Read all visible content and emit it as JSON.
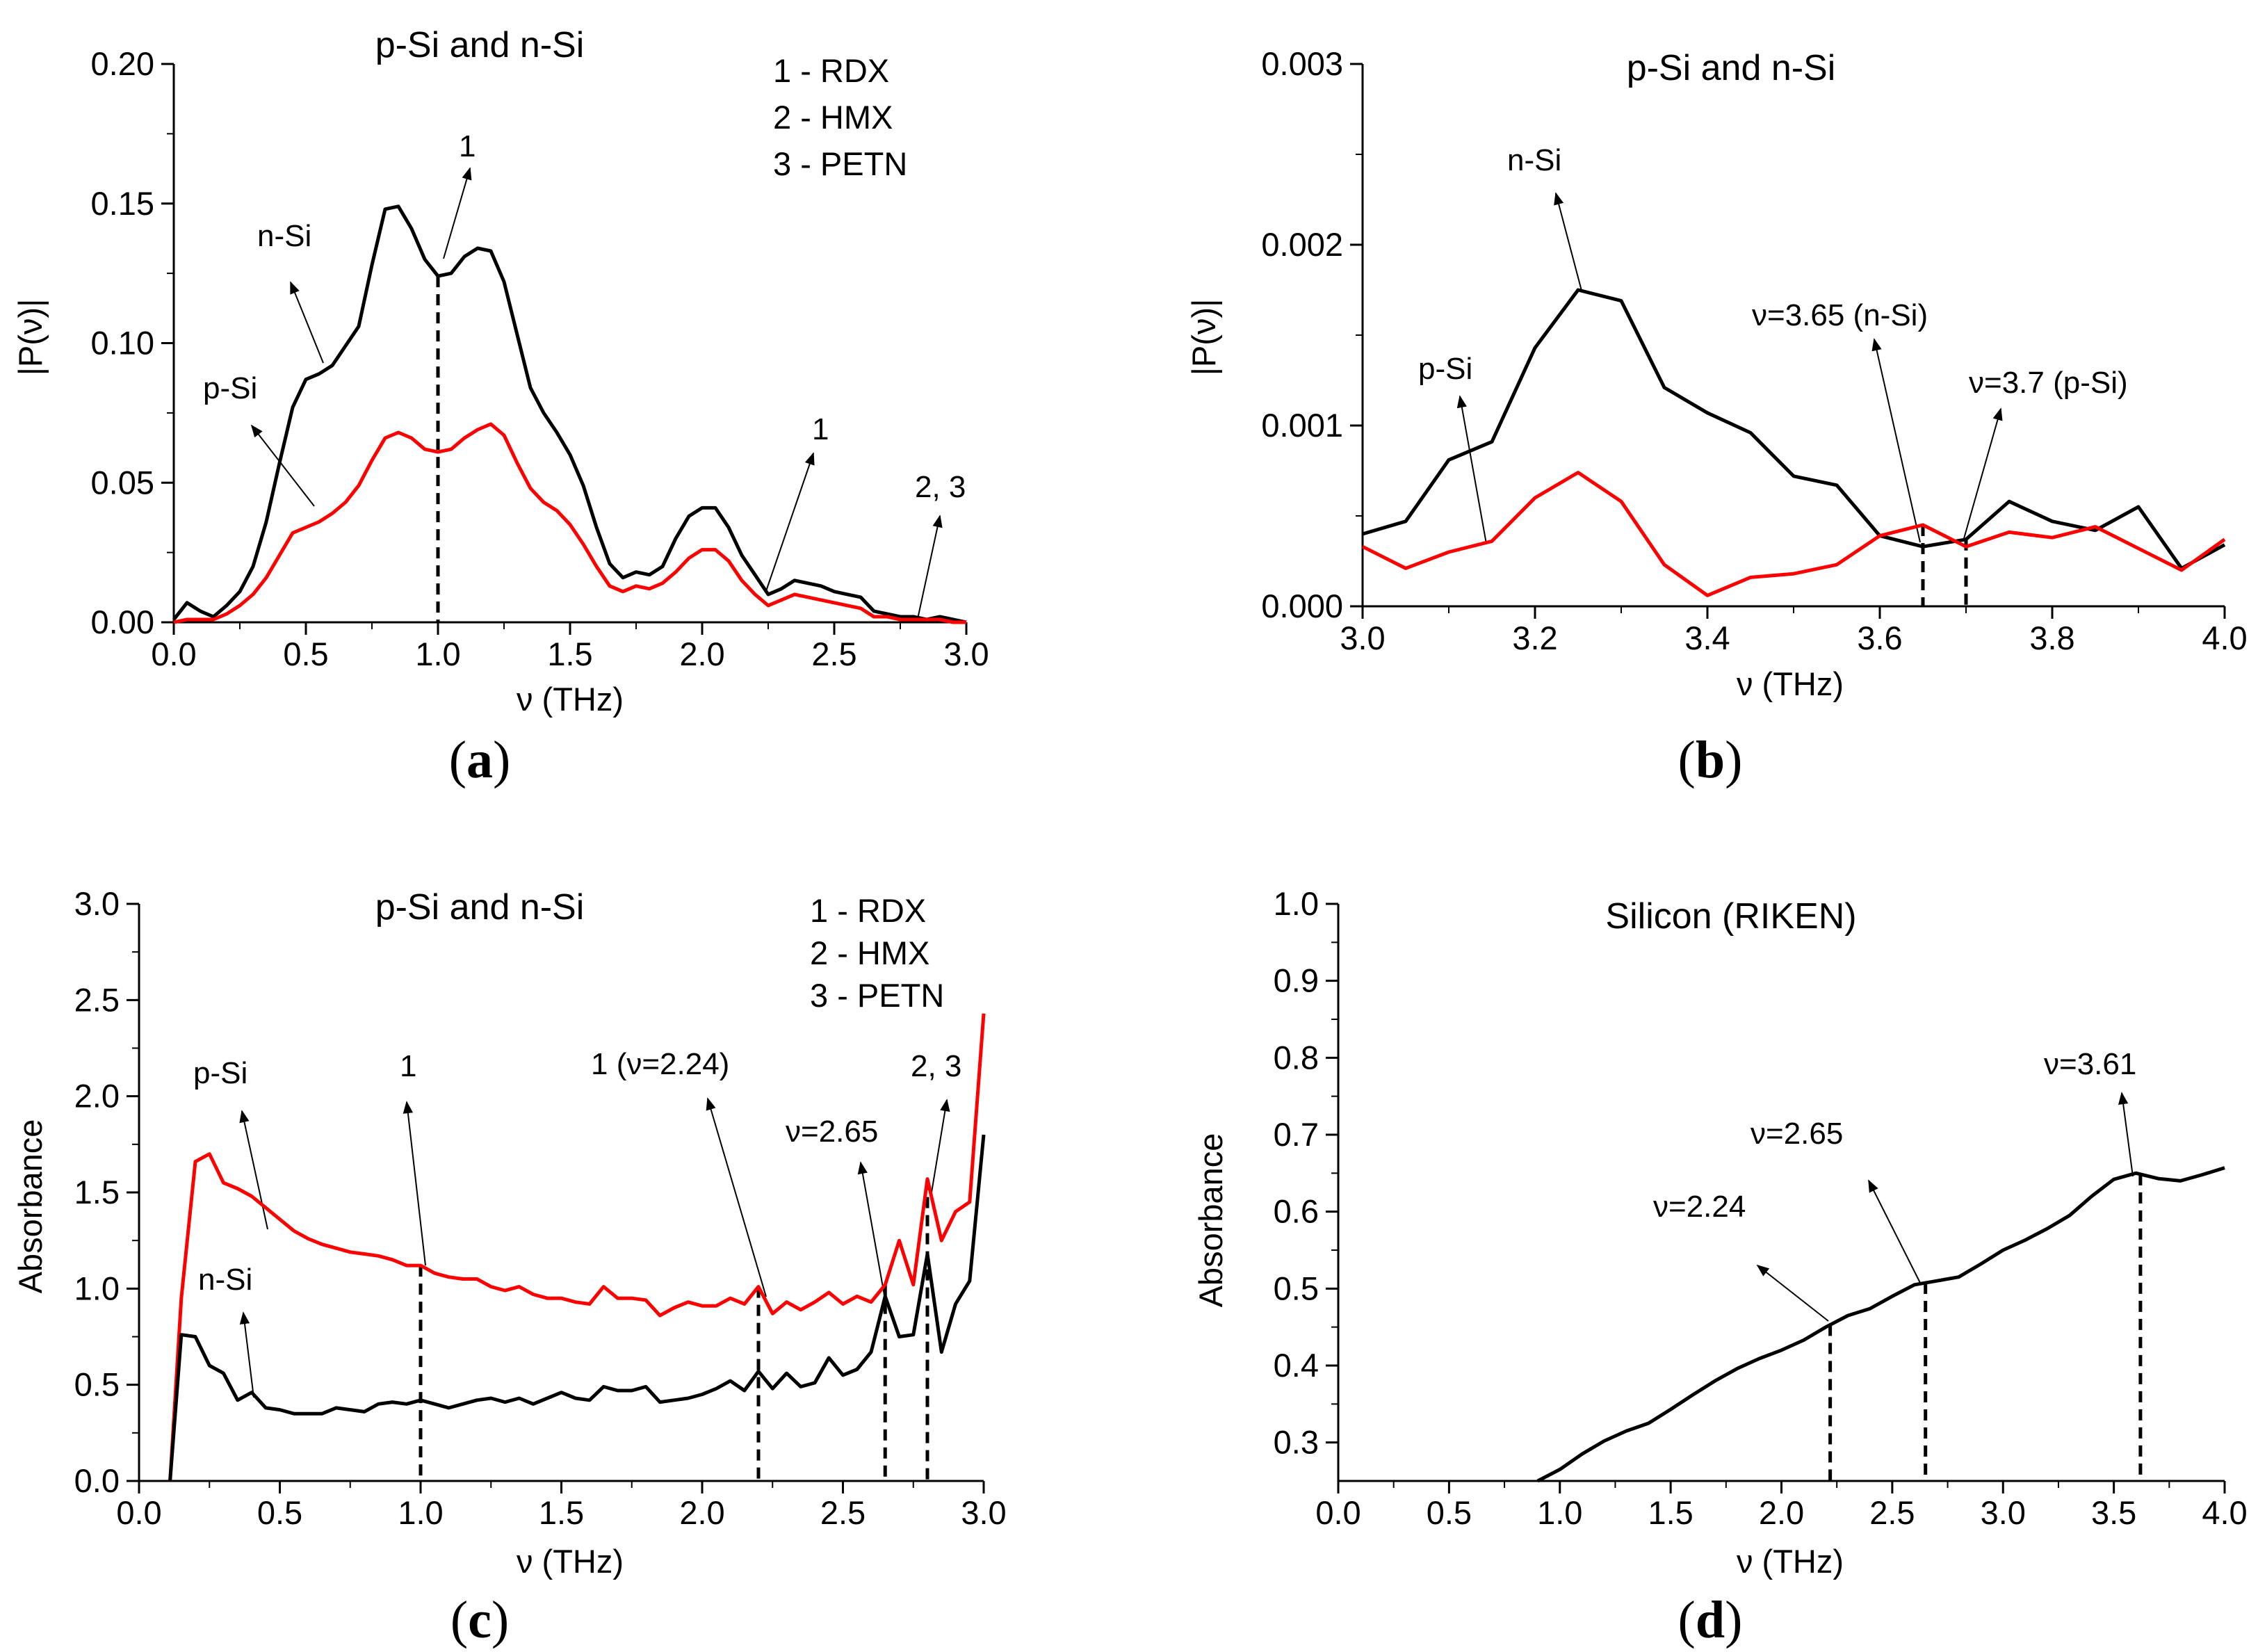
{
  "chart_data": [
    {
      "id": "a",
      "type": "line",
      "caption": "a",
      "title": "p-Si and n-Si",
      "xlabel": "ν (THz)",
      "ylabel": "|P(ν)|",
      "xlim": [
        0,
        3
      ],
      "ylim": [
        0,
        0.2
      ],
      "xticks": [
        "0.0",
        "0.5",
        "1.0",
        "1.5",
        "2.0",
        "2.5",
        "3.0"
      ],
      "yticks": [
        "0.00",
        "0.05",
        "0.10",
        "0.15",
        "0.20"
      ],
      "legend_text": [
        "1 - RDX",
        "2 - HMX",
        "3 - PETN"
      ],
      "series": [
        {
          "name": "n-Si",
          "color": "#000000",
          "x": [
            0,
            0.05,
            0.1,
            0.15,
            0.2,
            0.25,
            0.3,
            0.35,
            0.4,
            0.45,
            0.5,
            0.55,
            0.6,
            0.65,
            0.7,
            0.75,
            0.8,
            0.85,
            0.9,
            0.95,
            1.0,
            1.05,
            1.1,
            1.15,
            1.2,
            1.25,
            1.3,
            1.35,
            1.4,
            1.45,
            1.5,
            1.55,
            1.6,
            1.65,
            1.7,
            1.75,
            1.8,
            1.85,
            1.9,
            1.95,
            2.0,
            2.05,
            2.1,
            2.15,
            2.2,
            2.25,
            2.3,
            2.35,
            2.4,
            2.45,
            2.5,
            2.55,
            2.6,
            2.65,
            2.7,
            2.75,
            2.8,
            2.85,
            2.9,
            2.95,
            3.0
          ],
          "y": [
            0.001,
            0.007,
            0.004,
            0.002,
            0.006,
            0.011,
            0.02,
            0.036,
            0.057,
            0.077,
            0.087,
            0.089,
            0.092,
            0.099,
            0.106,
            0.128,
            0.148,
            0.149,
            0.141,
            0.13,
            0.124,
            0.125,
            0.131,
            0.134,
            0.133,
            0.122,
            0.103,
            0.084,
            0.075,
            0.068,
            0.06,
            0.049,
            0.034,
            0.021,
            0.016,
            0.018,
            0.017,
            0.02,
            0.03,
            0.038,
            0.041,
            0.041,
            0.034,
            0.024,
            0.017,
            0.01,
            0.012,
            0.015,
            0.014,
            0.013,
            0.011,
            0.01,
            0.009,
            0.004,
            0.003,
            0.002,
            0.002,
            0.001,
            0.002,
            0.001,
            0.0
          ]
        },
        {
          "name": "p-Si",
          "color": "#ff0000",
          "x": [
            0,
            0.05,
            0.1,
            0.15,
            0.2,
            0.25,
            0.3,
            0.35,
            0.4,
            0.45,
            0.5,
            0.55,
            0.6,
            0.65,
            0.7,
            0.75,
            0.8,
            0.85,
            0.9,
            0.95,
            1.0,
            1.05,
            1.1,
            1.15,
            1.2,
            1.25,
            1.3,
            1.35,
            1.4,
            1.45,
            1.5,
            1.55,
            1.6,
            1.65,
            1.7,
            1.75,
            1.8,
            1.85,
            1.9,
            1.95,
            2.0,
            2.05,
            2.1,
            2.15,
            2.2,
            2.25,
            2.3,
            2.35,
            2.4,
            2.45,
            2.5,
            2.55,
            2.6,
            2.65,
            2.7,
            2.75,
            2.8,
            2.85,
            2.9,
            2.95,
            3.0
          ],
          "y": [
            0.0,
            0.001,
            0.001,
            0.001,
            0.003,
            0.006,
            0.01,
            0.016,
            0.024,
            0.032,
            0.034,
            0.036,
            0.039,
            0.043,
            0.049,
            0.058,
            0.066,
            0.068,
            0.066,
            0.062,
            0.061,
            0.062,
            0.066,
            0.069,
            0.071,
            0.067,
            0.057,
            0.048,
            0.043,
            0.04,
            0.035,
            0.028,
            0.02,
            0.013,
            0.011,
            0.013,
            0.012,
            0.014,
            0.018,
            0.023,
            0.026,
            0.026,
            0.022,
            0.015,
            0.01,
            0.006,
            0.008,
            0.01,
            0.009,
            0.008,
            0.007,
            0.006,
            0.005,
            0.002,
            0.002,
            0.001,
            0.001,
            0.001,
            0.001,
            0.0,
            0.0
          ]
        }
      ],
      "annotations": [
        {
          "text": "n-Si"
        },
        {
          "text": "p-Si"
        },
        {
          "text": "1"
        },
        {
          "text": "1"
        },
        {
          "text": "2, 3"
        }
      ],
      "vlines": [
        1.0
      ]
    },
    {
      "id": "b",
      "type": "line",
      "caption": "b",
      "title": "p-Si and n-Si",
      "xlabel": "ν (THz)",
      "ylabel": "|P(ν)|",
      "xlim": [
        3,
        4
      ],
      "ylim": [
        0,
        0.003
      ],
      "xticks": [
        "3.0",
        "3.2",
        "3.4",
        "3.6",
        "3.8",
        "4.0"
      ],
      "yticks": [
        "0.000",
        "0.001",
        "0.002",
        "0.003"
      ],
      "series": [
        {
          "name": "n-Si",
          "color": "#000000",
          "x": [
            3.0,
            3.05,
            3.1,
            3.15,
            3.2,
            3.25,
            3.3,
            3.35,
            3.4,
            3.45,
            3.5,
            3.55,
            3.6,
            3.65,
            3.7,
            3.75,
            3.8,
            3.85,
            3.9,
            3.95,
            4.0
          ],
          "y": [
            0.0004,
            0.00047,
            0.00081,
            0.00091,
            0.00143,
            0.00175,
            0.00169,
            0.00121,
            0.00107,
            0.00096,
            0.00072,
            0.00067,
            0.00039,
            0.00033,
            0.00037,
            0.00058,
            0.00047,
            0.00042,
            0.00055,
            0.00021,
            0.00034
          ]
        },
        {
          "name": "p-Si",
          "color": "#ff0000",
          "x": [
            3.0,
            3.05,
            3.1,
            3.15,
            3.2,
            3.25,
            3.3,
            3.35,
            3.4,
            3.45,
            3.5,
            3.55,
            3.6,
            3.65,
            3.7,
            3.75,
            3.8,
            3.85,
            3.9,
            3.95,
            4.0
          ],
          "y": [
            0.00033,
            0.00021,
            0.0003,
            0.00036,
            0.0006,
            0.00074,
            0.00058,
            0.00023,
            6e-05,
            0.00016,
            0.00018,
            0.00023,
            0.00039,
            0.00045,
            0.00033,
            0.00041,
            0.00038,
            0.00044,
            0.00032,
            0.0002,
            0.00037
          ]
        }
      ],
      "annotations": [
        {
          "text": "n-Si"
        },
        {
          "text": "p-Si"
        },
        {
          "text": "ν=3.65 (n-Si)"
        },
        {
          "text": "ν=3.7 (p-Si)"
        }
      ],
      "vlines": [
        3.65,
        3.7
      ]
    },
    {
      "id": "c",
      "type": "line",
      "caption": "c",
      "title": "p-Si and n-Si",
      "xlabel": "ν (THz)",
      "ylabel": "Absorbance",
      "xlim": [
        0,
        3
      ],
      "ylim": [
        0,
        3
      ],
      "xticks": [
        "0.0",
        "0.5",
        "1.0",
        "1.5",
        "2.0",
        "2.5",
        "3.0"
      ],
      "yticks": [
        "0.0",
        "0.5",
        "1.0",
        "1.5",
        "2.0",
        "2.5",
        "3.0"
      ],
      "legend_text": [
        "1 - RDX",
        "2 - HMX",
        "3 - PETN"
      ],
      "series": [
        {
          "name": "p-Si",
          "color": "#ff0000",
          "x": [
            0.11,
            0.15,
            0.2,
            0.25,
            0.3,
            0.35,
            0.4,
            0.45,
            0.5,
            0.55,
            0.6,
            0.65,
            0.7,
            0.75,
            0.8,
            0.85,
            0.9,
            0.95,
            1.0,
            1.05,
            1.1,
            1.15,
            1.2,
            1.25,
            1.3,
            1.35,
            1.4,
            1.45,
            1.5,
            1.55,
            1.6,
            1.65,
            1.7,
            1.75,
            1.8,
            1.85,
            1.9,
            1.95,
            2.0,
            2.05,
            2.1,
            2.15,
            2.2,
            2.25,
            2.3,
            2.35,
            2.4,
            2.45,
            2.5,
            2.55,
            2.6,
            2.65,
            2.7,
            2.75,
            2.8,
            2.85,
            2.9,
            2.95,
            3.0
          ],
          "y": [
            0.0,
            0.95,
            1.66,
            1.7,
            1.55,
            1.52,
            1.48,
            1.42,
            1.36,
            1.3,
            1.26,
            1.23,
            1.21,
            1.19,
            1.18,
            1.17,
            1.15,
            1.12,
            1.12,
            1.08,
            1.06,
            1.05,
            1.05,
            1.01,
            0.99,
            1.01,
            0.97,
            0.95,
            0.95,
            0.93,
            0.92,
            1.01,
            0.95,
            0.95,
            0.94,
            0.86,
            0.9,
            0.93,
            0.91,
            0.91,
            0.95,
            0.92,
            1.01,
            0.87,
            0.93,
            0.89,
            0.93,
            0.98,
            0.92,
            0.96,
            0.93,
            1.02,
            1.25,
            1.02,
            1.57,
            1.25,
            1.4,
            1.45,
            2.43
          ]
        },
        {
          "name": "n-Si",
          "color": "#000000",
          "x": [
            0.11,
            0.15,
            0.2,
            0.25,
            0.3,
            0.35,
            0.4,
            0.45,
            0.5,
            0.55,
            0.6,
            0.65,
            0.7,
            0.75,
            0.8,
            0.85,
            0.9,
            0.95,
            1.0,
            1.05,
            1.1,
            1.15,
            1.2,
            1.25,
            1.3,
            1.35,
            1.4,
            1.45,
            1.5,
            1.55,
            1.6,
            1.65,
            1.7,
            1.75,
            1.8,
            1.85,
            1.9,
            1.95,
            2.0,
            2.05,
            2.1,
            2.15,
            2.2,
            2.25,
            2.3,
            2.35,
            2.4,
            2.45,
            2.5,
            2.55,
            2.6,
            2.65,
            2.7,
            2.75,
            2.8,
            2.85,
            2.9,
            2.95,
            3.0
          ],
          "y": [
            0.0,
            0.76,
            0.75,
            0.6,
            0.56,
            0.42,
            0.46,
            0.38,
            0.37,
            0.35,
            0.35,
            0.35,
            0.38,
            0.37,
            0.36,
            0.4,
            0.41,
            0.4,
            0.42,
            0.4,
            0.38,
            0.4,
            0.42,
            0.43,
            0.41,
            0.43,
            0.4,
            0.43,
            0.46,
            0.43,
            0.42,
            0.49,
            0.47,
            0.47,
            0.49,
            0.41,
            0.42,
            0.43,
            0.45,
            0.48,
            0.52,
            0.47,
            0.57,
            0.48,
            0.56,
            0.49,
            0.51,
            0.64,
            0.55,
            0.58,
            0.67,
            0.96,
            0.75,
            0.76,
            1.18,
            0.67,
            0.92,
            1.04,
            1.8
          ]
        }
      ],
      "annotations": [
        {
          "text": "p-Si"
        },
        {
          "text": "n-Si"
        },
        {
          "text": "1"
        },
        {
          "text": "1 (ν=2.24)"
        },
        {
          "text": "ν=2.65"
        },
        {
          "text": "2, 3"
        }
      ],
      "vlines": [
        1.0,
        2.2,
        2.65,
        2.8
      ]
    },
    {
      "id": "d",
      "type": "line",
      "caption": "d",
      "title": "Silicon (RIKEN)",
      "xlabel": "ν (THz)",
      "ylabel": "Absorbance",
      "xlim": [
        0,
        4
      ],
      "ylim": [
        0.25,
        1.0
      ],
      "xticks": [
        "0.0",
        "0.5",
        "1.0",
        "1.5",
        "2.0",
        "2.5",
        "3.0",
        "3.5",
        "4.0"
      ],
      "yticks": [
        "0.3",
        "0.4",
        "0.5",
        "0.6",
        "0.7",
        "0.8",
        "0.9",
        "1.0"
      ],
      "series": [
        {
          "name": "Silicon",
          "color": "#000000",
          "x": [
            0.9,
            1.0,
            1.1,
            1.2,
            1.3,
            1.4,
            1.5,
            1.6,
            1.7,
            1.8,
            1.9,
            2.0,
            2.1,
            2.2,
            2.3,
            2.4,
            2.5,
            2.6,
            2.7,
            2.8,
            2.9,
            3.0,
            3.1,
            3.2,
            3.3,
            3.4,
            3.5,
            3.6,
            3.7,
            3.8,
            3.9,
            4.0
          ],
          "y": [
            0.25,
            0.265,
            0.285,
            0.302,
            0.315,
            0.325,
            0.343,
            0.362,
            0.38,
            0.396,
            0.409,
            0.42,
            0.433,
            0.45,
            0.465,
            0.474,
            0.49,
            0.505,
            0.51,
            0.515,
            0.532,
            0.55,
            0.563,
            0.578,
            0.595,
            0.62,
            0.642,
            0.65,
            0.643,
            0.64,
            0.648,
            0.657
          ]
        }
      ],
      "annotations": [
        {
          "text": "ν=2.24"
        },
        {
          "text": "ν=2.65"
        },
        {
          "text": "ν=3.61"
        }
      ],
      "vlines": [
        2.22,
        2.65,
        3.62
      ]
    }
  ]
}
